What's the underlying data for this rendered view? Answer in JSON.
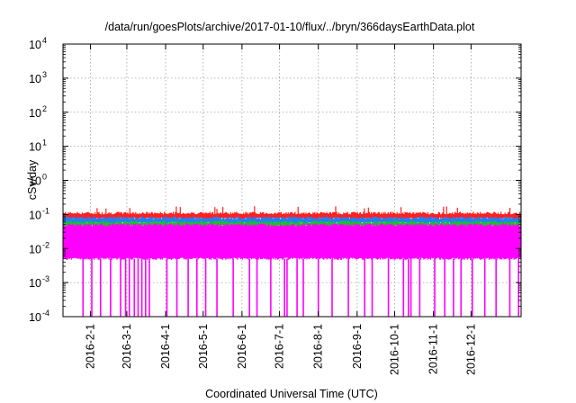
{
  "chart_data": {
    "type": "area",
    "title": "/data/run/goesPlots/archive/2017-01-10/flux/../bryn/366daysEarthData.plot",
    "xlabel": "Coordinated Universal Time (UTC)",
    "ylabel": "cSv/day",
    "yscale": "log",
    "ylim": [
      0.0001,
      10000
    ],
    "xlim": [
      "2016-01-10",
      "2017-01-10"
    ],
    "grid": true,
    "x_ticks": [
      "2016-2-1",
      "2016-3-1",
      "2016-4-1",
      "2016-5-1",
      "2016-6-1",
      "2016-7-1",
      "2016-8-1",
      "2016-9-1",
      "2016-10-1",
      "2016-11-1",
      "2016-12-1"
    ],
    "y_ticks": [
      {
        "base": "10",
        "exp": "-4",
        "value": 0.0001
      },
      {
        "base": "10",
        "exp": "-3",
        "value": 0.001
      },
      {
        "base": "10",
        "exp": "-2",
        "value": 0.01
      },
      {
        "base": "10",
        "exp": "-1",
        "value": 0.1
      },
      {
        "base": "10",
        "exp": "0",
        "value": 1
      },
      {
        "base": "10",
        "exp": "1",
        "value": 10
      },
      {
        "base": "10",
        "exp": "2",
        "value": 100
      },
      {
        "base": "10",
        "exp": "3",
        "value": 1000
      },
      {
        "base": "10",
        "exp": "4",
        "value": 10000
      }
    ],
    "series": [
      {
        "color": "#ff2020",
        "band": [
          0.075,
          0.11
        ]
      },
      {
        "color": "#2080ff",
        "band": [
          0.055,
          0.08
        ]
      },
      {
        "color": "#20c020",
        "band": [
          0.045,
          0.06
        ]
      },
      {
        "color": "#ff00ff",
        "band": [
          0.005,
          0.05
        ]
      }
    ],
    "dropouts": [
      "2016-01-26",
      "2016-02-02",
      "2016-02-09",
      "2016-02-17",
      "2016-02-25",
      "2016-02-29",
      "2016-03-03",
      "2016-03-07",
      "2016-03-10",
      "2016-03-13",
      "2016-03-16",
      "2016-03-19",
      "2016-04-02",
      "2016-04-10",
      "2016-04-19",
      "2016-04-26",
      "2016-05-03",
      "2016-05-12",
      "2016-05-25",
      "2016-06-07",
      "2016-06-13",
      "2016-06-24",
      "2016-07-05",
      "2016-07-07",
      "2016-07-15",
      "2016-07-20",
      "2016-08-01",
      "2016-08-12",
      "2016-08-25",
      "2016-09-07",
      "2016-09-13",
      "2016-09-26",
      "2016-10-08",
      "2016-10-12",
      "2016-10-14",
      "2016-10-21",
      "2016-11-02",
      "2016-11-10",
      "2016-11-17",
      "2016-11-23",
      "2016-12-02",
      "2016-12-12",
      "2016-12-21",
      "2017-01-01",
      "2017-01-08"
    ],
    "colors": {
      "magenta": "#ff00ff",
      "green": "#20c020",
      "blue": "#2080ff",
      "red": "#ff2020",
      "grid": "#a0a0a0"
    }
  }
}
